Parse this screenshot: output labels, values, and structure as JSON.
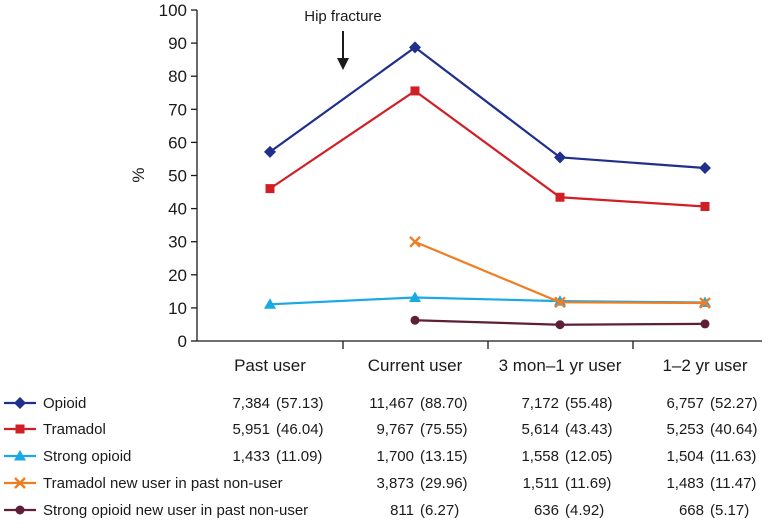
{
  "chart_data": {
    "type": "line",
    "title": "",
    "xlabel": "",
    "ylabel": "%",
    "ylim": [
      0,
      100
    ],
    "yticks": [
      0,
      10,
      20,
      30,
      40,
      50,
      60,
      70,
      80,
      90,
      100
    ],
    "grid": false,
    "categories": [
      "Past user",
      "Current user",
      "3 mon–1 yr user",
      "1–2 yr user"
    ],
    "annotation": {
      "text": "Hip fracture",
      "between": [
        "Past user",
        "Current user"
      ]
    },
    "series": [
      {
        "name": "Opioid",
        "color": "#1f2f8c",
        "marker": "diamond",
        "values": [
          57.13,
          88.7,
          55.48,
          52.27
        ],
        "table": [
          "7,384",
          "(57.13)",
          "11,467",
          "(88.70)",
          "7,172",
          "(55.48)",
          "6,757",
          "(52.27)"
        ]
      },
      {
        "name": "Tramadol",
        "color": "#d11f26",
        "marker": "square",
        "values": [
          46.04,
          75.55,
          43.43,
          40.64
        ],
        "table": [
          "5,951",
          "(46.04)",
          "9,767",
          "(75.55)",
          "5,614",
          "(43.43)",
          "5,253",
          "(40.64)"
        ]
      },
      {
        "name": "Strong opioid",
        "color": "#19a9e3",
        "marker": "triangle",
        "values": [
          11.09,
          13.15,
          12.05,
          11.63
        ],
        "table": [
          "1,433",
          "(11.09)",
          "1,700",
          "(13.15)",
          "1,558",
          "(12.05)",
          "1,504",
          "(11.63)"
        ]
      },
      {
        "name": "Tramadol new user in past non-user",
        "color": "#f07d22",
        "marker": "x",
        "values": [
          null,
          29.96,
          11.69,
          11.47
        ],
        "table": [
          null,
          null,
          "3,873",
          "(29.96)",
          "1,511",
          "(11.69)",
          "1,483",
          "(11.47)"
        ]
      },
      {
        "name": "Strong opioid new user in past non-user",
        "color": "#5e1f38",
        "marker": "circle",
        "values": [
          null,
          6.27,
          4.92,
          5.17
        ],
        "table": [
          null,
          null,
          "811",
          "(6.27)",
          "636",
          "(4.92)",
          "668",
          "(5.17)"
        ]
      }
    ]
  }
}
